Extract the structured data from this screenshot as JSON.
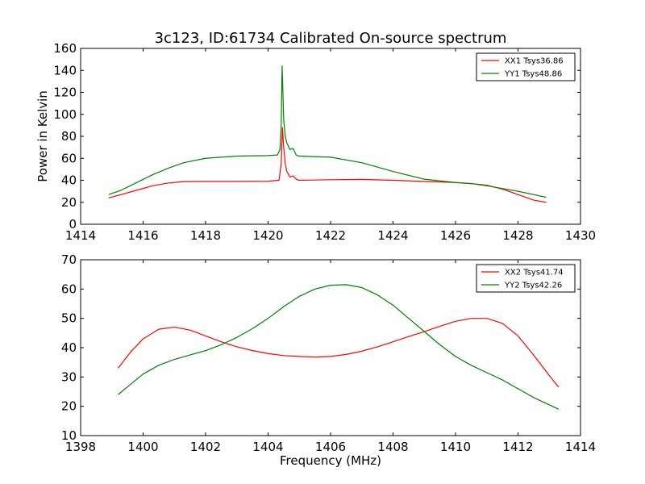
{
  "chart_data": [
    {
      "type": "line",
      "title": "3c123, ID:61734 Calibrated On-source spectrum",
      "xlabel": "",
      "ylabel": "Power in Kelvin",
      "xlim": [
        1414,
        1430
      ],
      "ylim": [
        0,
        160
      ],
      "xticks": [
        "1414",
        "1416",
        "1418",
        "1420",
        "1422",
        "1424",
        "1426",
        "1428",
        "1430"
      ],
      "yticks": [
        "0",
        "20",
        "40",
        "60",
        "80",
        "100",
        "120",
        "140",
        "160"
      ],
      "legend_position": "top-right",
      "grid": false,
      "series": [
        {
          "name": "XX1 Tsys36.86",
          "color": "#ff0000",
          "x": [
            1414.9,
            1415.3,
            1415.8,
            1416.3,
            1416.8,
            1417.3,
            1418.0,
            1419.0,
            1420.0,
            1420.35,
            1420.42,
            1420.46,
            1420.5,
            1420.55,
            1420.6,
            1420.7,
            1420.8,
            1420.9,
            1421.0,
            1422.0,
            1423.0,
            1424.0,
            1425.0,
            1426.0,
            1426.5,
            1427.0,
            1427.5,
            1428.0,
            1428.5,
            1428.9
          ],
          "y": [
            24,
            27,
            31,
            35,
            37.5,
            38.8,
            39,
            39,
            39.2,
            40,
            55,
            88,
            70,
            55,
            48,
            43,
            44,
            41,
            40,
            40.5,
            40.8,
            40,
            39,
            38,
            37,
            35.5,
            32,
            27,
            22,
            20
          ]
        },
        {
          "name": "YY1 Tsys48.86",
          "color": "#008000",
          "x": [
            1414.9,
            1415.3,
            1415.8,
            1416.3,
            1416.8,
            1417.3,
            1418.0,
            1419.0,
            1420.0,
            1420.3,
            1420.38,
            1420.42,
            1420.45,
            1420.5,
            1420.55,
            1420.6,
            1420.7,
            1420.8,
            1420.9,
            1421.0,
            1422.0,
            1423.0,
            1424.0,
            1425.0,
            1426.0,
            1426.5,
            1427.0,
            1427.5,
            1428.0,
            1428.5,
            1428.9
          ],
          "y": [
            27,
            31,
            38,
            45,
            51,
            56,
            60,
            62,
            62.5,
            63,
            68,
            90,
            144,
            95,
            80,
            74,
            68,
            69,
            63,
            62,
            61,
            56,
            48,
            41,
            38,
            37,
            35,
            32.5,
            30,
            27,
            24.5
          ]
        }
      ]
    },
    {
      "type": "line",
      "title": "",
      "xlabel": "Frequency (MHz)",
      "ylabel": "",
      "xlim": [
        1398,
        1414
      ],
      "ylim": [
        10,
        70
      ],
      "xticks": [
        "1398",
        "1400",
        "1402",
        "1404",
        "1406",
        "1408",
        "1410",
        "1412",
        "1414"
      ],
      "yticks": [
        "10",
        "20",
        "30",
        "40",
        "50",
        "60",
        "70"
      ],
      "legend_position": "top-right",
      "grid": false,
      "series": [
        {
          "name": "XX2 Tsys41.74",
          "color": "#ff0000",
          "x": [
            1399.2,
            1399.6,
            1400.0,
            1400.5,
            1401.0,
            1401.5,
            1402.0,
            1402.5,
            1403.0,
            1403.5,
            1404.0,
            1404.5,
            1405.0,
            1405.5,
            1406.0,
            1406.5,
            1407.0,
            1407.5,
            1408.0,
            1408.5,
            1409.0,
            1409.5,
            1410.0,
            1410.5,
            1411.0,
            1411.5,
            1412.0,
            1412.5,
            1413.0,
            1413.3
          ],
          "y": [
            33,
            38.5,
            43,
            46.3,
            47,
            46,
            44,
            42,
            40.3,
            39,
            38,
            37.3,
            37,
            36.8,
            37,
            37.7,
            38.8,
            40.3,
            42,
            43.8,
            45.5,
            47.3,
            49,
            50,
            50,
            48.3,
            44,
            37.5,
            30.5,
            26.5
          ]
        },
        {
          "name": "YY2 Tsys42.26",
          "color": "#008000",
          "x": [
            1399.2,
            1399.6,
            1400.0,
            1400.5,
            1401.0,
            1401.5,
            1402.0,
            1402.5,
            1403.0,
            1403.5,
            1404.0,
            1404.5,
            1405.0,
            1405.5,
            1406.0,
            1406.5,
            1407.0,
            1407.5,
            1408.0,
            1408.5,
            1409.0,
            1409.5,
            1410.0,
            1410.5,
            1411.0,
            1411.5,
            1412.0,
            1412.5,
            1413.0,
            1413.3
          ],
          "y": [
            24,
            27.5,
            31,
            34,
            36,
            37.5,
            39,
            41,
            43.5,
            46.5,
            50,
            54,
            57.5,
            60,
            61.3,
            61.5,
            60.5,
            58,
            54.5,
            50,
            45.5,
            41,
            37,
            34,
            31.5,
            29,
            26,
            23,
            20.5,
            19
          ]
        }
      ]
    }
  ]
}
